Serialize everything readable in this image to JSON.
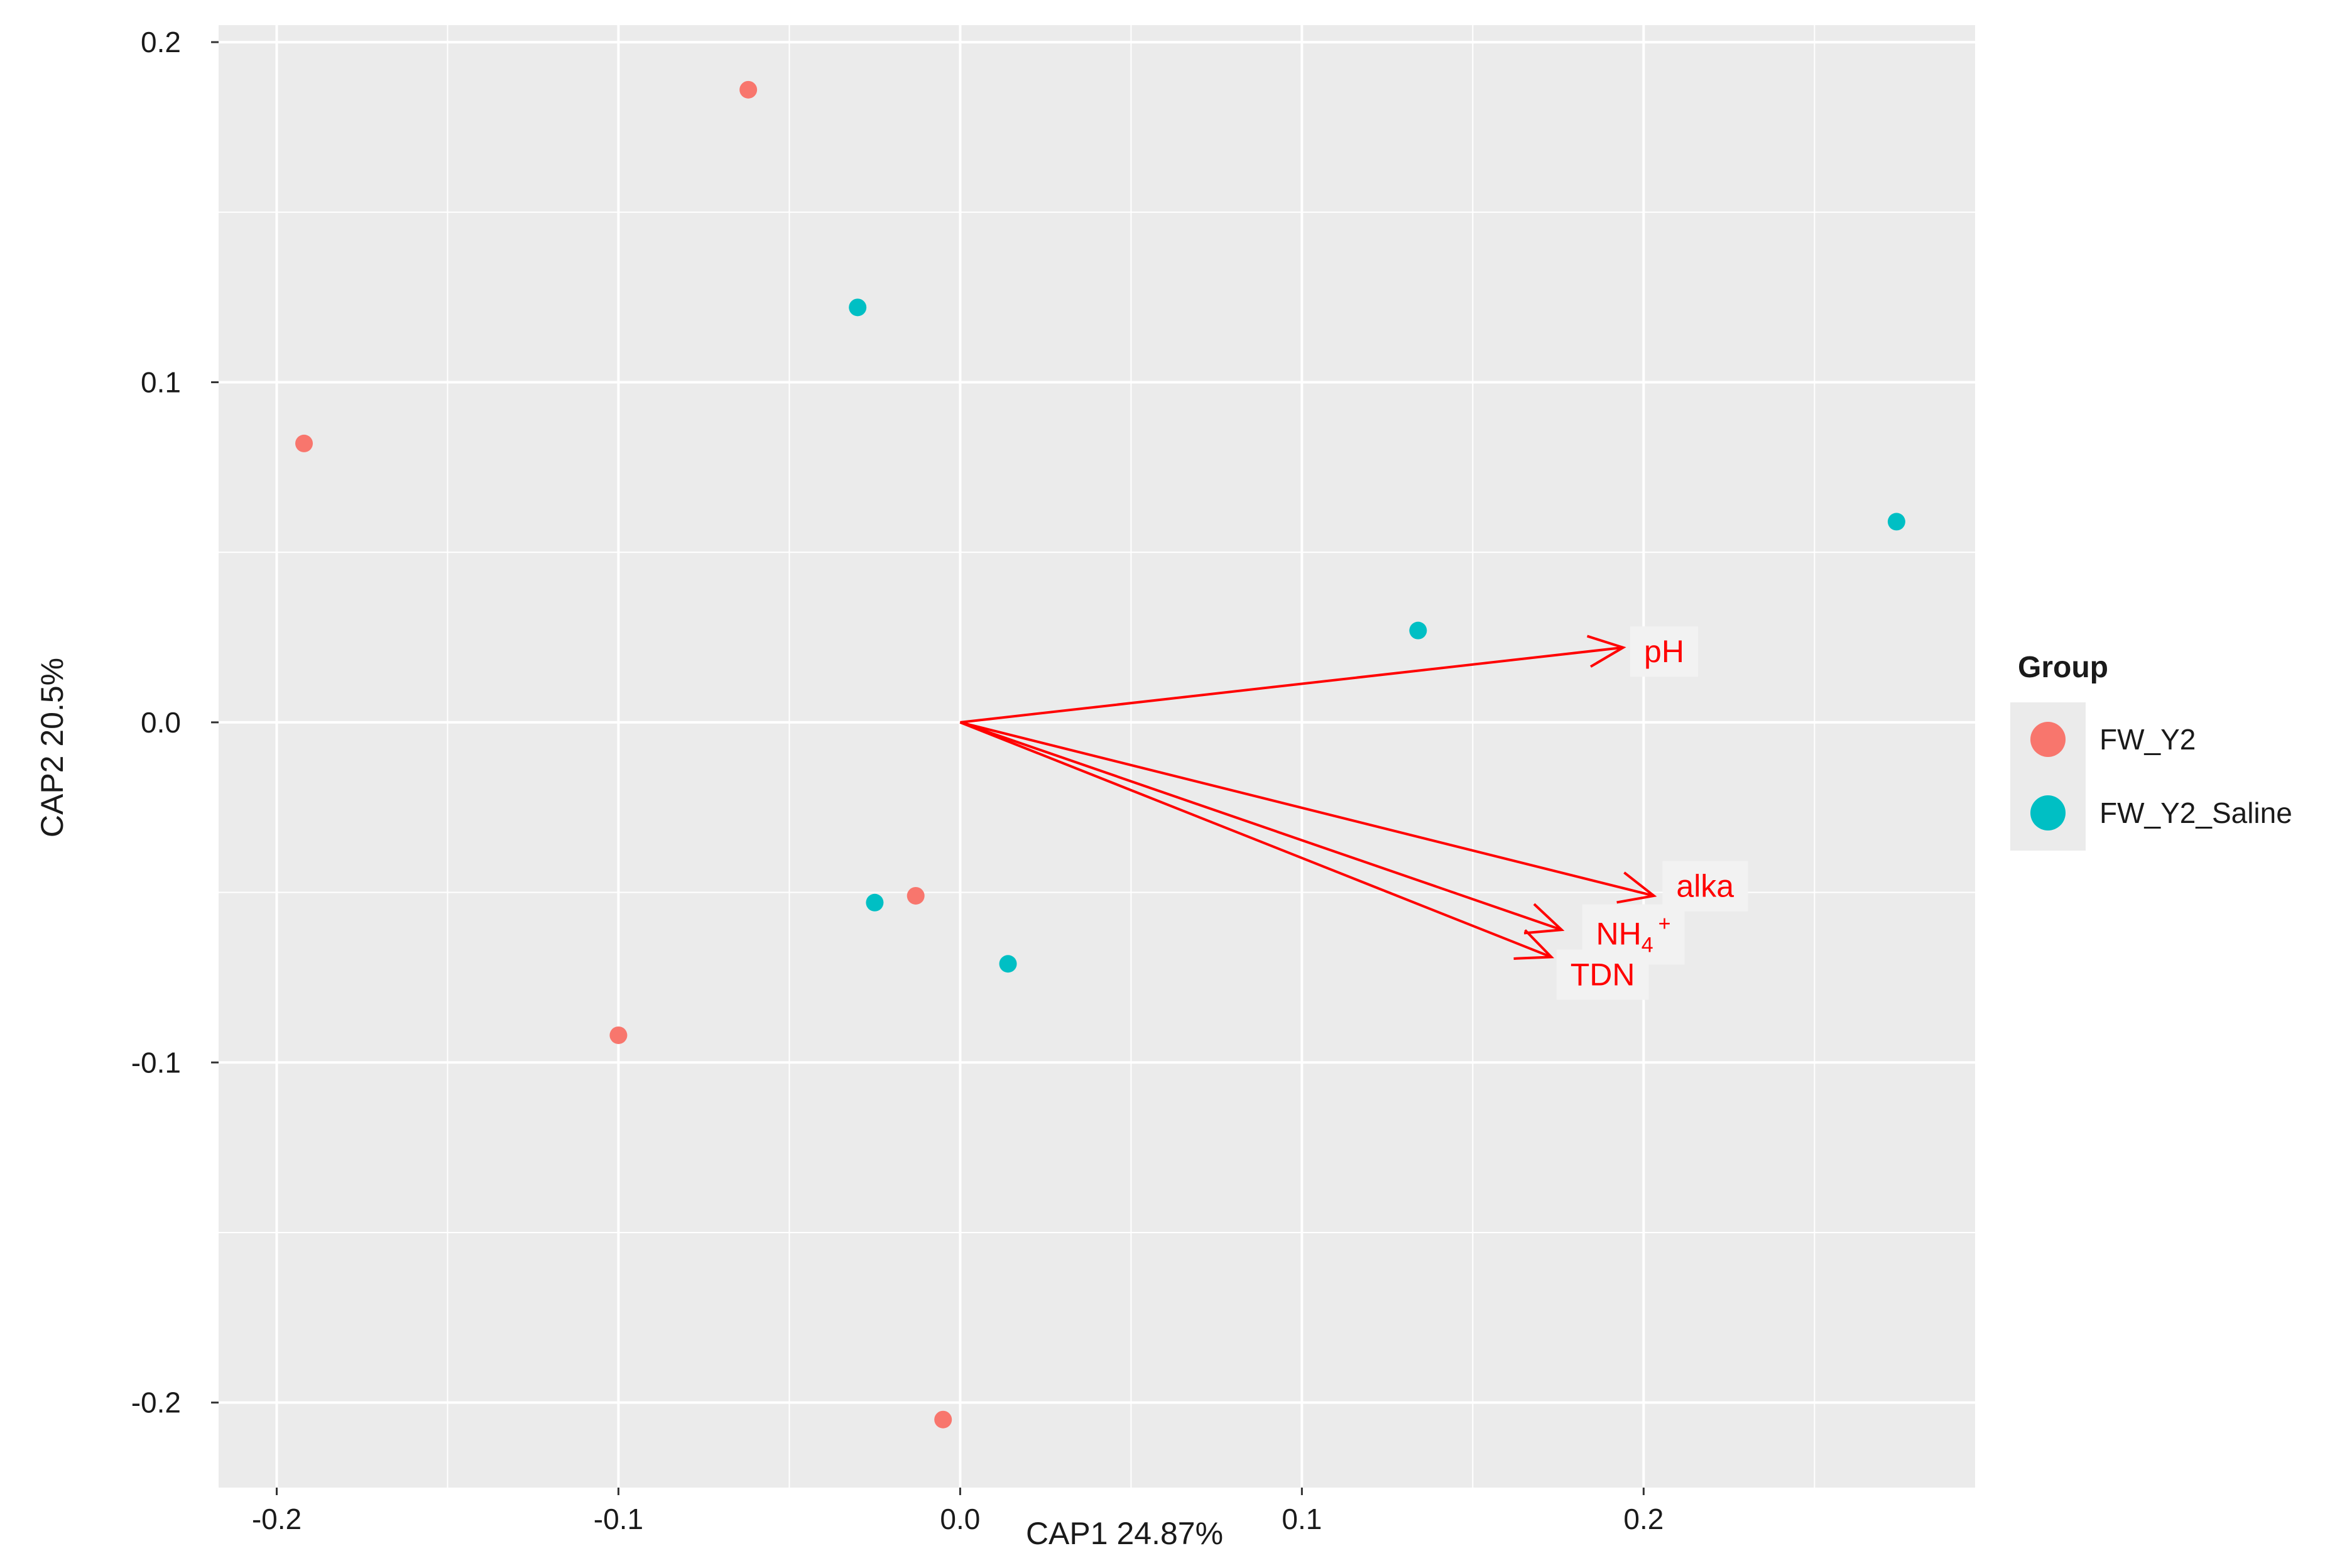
{
  "chart_data": {
    "type": "scatter",
    "title": "",
    "xlabel": "CAP1 24.87%",
    "ylabel": "CAP2 20.5%",
    "xlim": [
      -0.217,
      0.297
    ],
    "ylim": [
      -0.225,
      0.205
    ],
    "x_ticks": [
      -0.2,
      -0.1,
      0.0,
      0.1,
      0.2
    ],
    "x_tick_labels": [
      "-0.2",
      "-0.1",
      "0.0",
      "0.1",
      "0.2"
    ],
    "y_ticks": [
      -0.2,
      -0.1,
      0.0,
      0.1,
      0.2
    ],
    "y_tick_labels": [
      "-0.2",
      "-0.1",
      "0.0",
      "0.1",
      "0.2"
    ],
    "grid": true,
    "legend": {
      "title": "Group",
      "position": "right",
      "entries": [
        {
          "label": "FW_Y2",
          "color": "#F8766D"
        },
        {
          "label": "FW_Y2_Saline",
          "color": "#00BFC4"
        }
      ]
    },
    "series": [
      {
        "name": "FW_Y2",
        "color": "#F8766D",
        "points": [
          {
            "x": -0.192,
            "y": 0.082
          },
          {
            "x": -0.062,
            "y": 0.186
          },
          {
            "x": -0.1,
            "y": -0.092
          },
          {
            "x": -0.013,
            "y": -0.051
          },
          {
            "x": -0.005,
            "y": -0.205
          }
        ]
      },
      {
        "name": "FW_Y2_Saline",
        "color": "#00BFC4",
        "points": [
          {
            "x": -0.03,
            "y": 0.122
          },
          {
            "x": 0.274,
            "y": 0.059
          },
          {
            "x": 0.134,
            "y": 0.027
          },
          {
            "x": -0.025,
            "y": -0.053
          },
          {
            "x": 0.014,
            "y": -0.071
          }
        ]
      }
    ],
    "vectors": [
      {
        "name": "pH",
        "label": "pH",
        "x": 0.194,
        "y": 0.022,
        "label_x": 0.206,
        "label_y": 0.021
      },
      {
        "name": "alka",
        "label": "alka",
        "x": 0.203,
        "y": -0.051,
        "label_x": 0.218,
        "label_y": -0.048
      },
      {
        "name": "NH4+",
        "label": "NH",
        "sub": "4",
        "sup": "+",
        "x": 0.176,
        "y": -0.061,
        "label_x": 0.197,
        "label_y": -0.062
      },
      {
        "name": "TDN",
        "label": "TDN",
        "x": 0.173,
        "y": -0.069,
        "label_x": 0.188,
        "label_y": -0.074
      }
    ],
    "vector_color": "#FF0000"
  }
}
